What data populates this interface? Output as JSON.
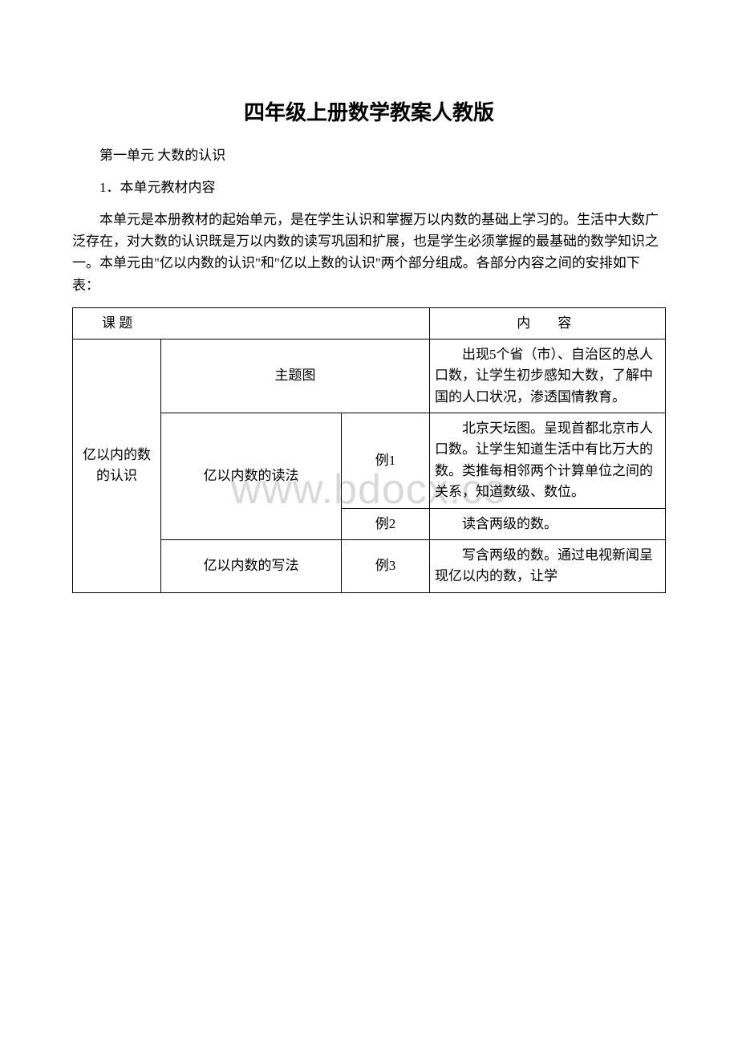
{
  "title": "四年级上册数学教案人教版",
  "subtitle": "第一单元 大数的认识",
  "point1": "1．本单元教材内容",
  "intro": "本单元是本册教材的起始单元，是在学生认识和掌握万以内数的基础上学习的。生活中大数广泛存在，对大数的认识既是万以内数的读写巩固和扩展，也是学生必须掌握的最基础的数学知识之一。本单元由\"亿以内数的认识\"和\"亿以上数的认识\"两个部分组成。各部分内容之间的安排如下表：",
  "watermark": "www.bdocx.co",
  "table": {
    "header_left": "课 题",
    "header_right": "内　容",
    "topic": "亿以内的数的认识",
    "rows": [
      {
        "sub": "主题图",
        "ex_span": 1,
        "ex": "",
        "content": "出现5个省（市）、自治区的总人口数，让学生初步感知大数，了解中国的人口状况，渗透国情教育。"
      },
      {
        "sub": "亿以内数的读法",
        "ex_span": 1,
        "ex": "例1",
        "content": "北京天坛图。呈现首都北京市人口数。让学生知道生活中有比万大的数。类推每相邻两个计算单位之间的关系，知道数级、数位。"
      },
      {
        "sub": "",
        "ex_span": 1,
        "ex": "例2",
        "content": "读含两级的数。"
      },
      {
        "sub": "亿以内数的写法",
        "ex_span": 1,
        "ex": "例3",
        "content": "写含两级的数。通过电视新闻呈现亿以内的数，让学"
      }
    ]
  }
}
